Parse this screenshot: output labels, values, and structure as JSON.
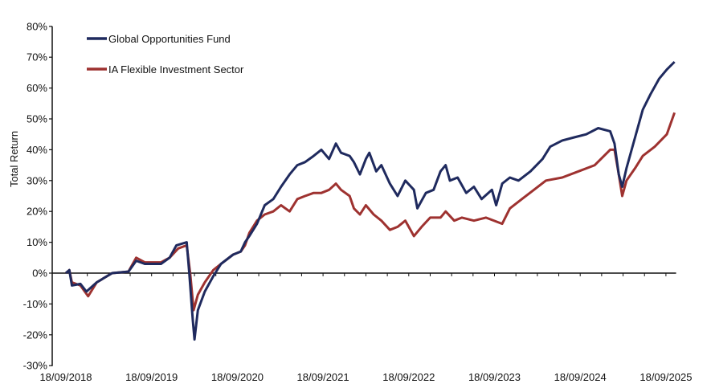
{
  "chart_data": {
    "type": "line",
    "title": "",
    "xlabel": "",
    "ylabel": "Total Return",
    "x_unit": "years since 18/09/2018",
    "xlim": [
      0,
      7.1
    ],
    "ylim": [
      -30,
      80
    ],
    "y_ticks": [
      -30,
      -20,
      -10,
      0,
      10,
      20,
      30,
      40,
      50,
      60,
      70,
      80
    ],
    "y_tick_labels": [
      "-30%",
      "-20%",
      "-10%",
      "0%",
      "10%",
      "20%",
      "30%",
      "40%",
      "50%",
      "60%",
      "70%",
      "80%"
    ],
    "x_ticks": [
      0,
      1,
      2,
      3,
      4,
      5,
      6,
      7
    ],
    "x_tick_labels": [
      "18/09/2018",
      "18/09/2019",
      "18/09/2020",
      "18/09/2021",
      "18/09/2022",
      "18/09/2023",
      "18/09/2024",
      "18/09/2025"
    ],
    "grid": false,
    "legend_position": "top-left",
    "series": [
      {
        "name": "Global Opportunities Fund",
        "color": "#1f2a5e",
        "x": [
          0,
          0.04,
          0.07,
          0.17,
          0.24,
          0.36,
          0.54,
          0.73,
          0.82,
          0.92,
          1.11,
          1.21,
          1.29,
          1.41,
          1.44,
          1.48,
          1.5,
          1.54,
          1.62,
          1.72,
          1.81,
          1.95,
          2.04,
          2.09,
          2.14,
          2.23,
          2.32,
          2.42,
          2.51,
          2.61,
          2.7,
          2.79,
          2.89,
          2.98,
          3.07,
          3.15,
          3.21,
          3.31,
          3.36,
          3.43,
          3.5,
          3.54,
          3.62,
          3.68,
          3.78,
          3.87,
          3.96,
          4.06,
          4.1,
          4.2,
          4.29,
          4.37,
          4.43,
          4.48,
          4.57,
          4.67,
          4.76,
          4.85,
          4.97,
          5.02,
          5.09,
          5.18,
          5.28,
          5.42,
          5.56,
          5.65,
          5.79,
          5.93,
          6.07,
          6.21,
          6.35,
          6.4,
          6.45,
          6.49,
          6.54,
          6.64,
          6.73,
          6.82,
          6.92,
          7.01,
          7.1
        ],
        "values": [
          0,
          1,
          -4,
          -3.5,
          -6,
          -3,
          0,
          0.5,
          4,
          3,
          3,
          5,
          9,
          10,
          0,
          -15,
          -21.5,
          -12,
          -6,
          -1,
          3,
          6,
          7,
          10,
          12,
          16,
          22,
          24,
          28,
          32,
          35,
          36,
          38,
          40,
          37,
          42,
          39,
          38,
          36,
          32,
          37,
          39,
          33,
          35,
          29,
          25,
          30,
          27,
          21,
          26,
          27,
          33,
          35,
          30,
          31,
          26,
          28,
          24,
          27,
          22,
          29,
          31,
          30,
          33,
          37,
          41,
          43,
          44,
          45,
          47,
          46,
          42,
          32,
          28,
          34,
          44,
          53,
          58,
          63,
          66,
          68.5
        ]
      },
      {
        "name": "IA Flexible Investment Sector",
        "color": "#9e3230",
        "x": [
          0,
          0.04,
          0.07,
          0.17,
          0.26,
          0.36,
          0.54,
          0.73,
          0.82,
          0.92,
          1.11,
          1.21,
          1.31,
          1.41,
          1.45,
          1.49,
          1.54,
          1.62,
          1.72,
          1.81,
          1.95,
          2.04,
          2.09,
          2.14,
          2.23,
          2.32,
          2.42,
          2.51,
          2.61,
          2.7,
          2.79,
          2.89,
          2.98,
          3.07,
          3.15,
          3.21,
          3.31,
          3.36,
          3.43,
          3.5,
          3.59,
          3.68,
          3.78,
          3.87,
          3.96,
          4.06,
          4.15,
          4.25,
          4.37,
          4.43,
          4.53,
          4.62,
          4.76,
          4.9,
          5.09,
          5.18,
          5.32,
          5.46,
          5.6,
          5.79,
          5.98,
          6.17,
          6.35,
          6.4,
          6.45,
          6.49,
          6.54,
          6.64,
          6.73,
          6.87,
          7.01,
          7.1
        ],
        "values": [
          0,
          1,
          -3,
          -4,
          -7.5,
          -3,
          0,
          0.5,
          5,
          3.5,
          3.5,
          5,
          8,
          9,
          0,
          -12,
          -7,
          -3,
          1,
          3,
          6,
          7,
          9,
          13,
          17,
          19,
          20,
          22,
          20,
          24,
          25,
          26,
          26,
          27,
          29,
          27,
          25,
          21,
          19,
          22,
          19,
          17,
          14,
          15,
          17,
          12,
          15,
          18,
          18,
          20,
          17,
          18,
          17,
          18,
          16,
          21,
          24,
          27,
          30,
          31,
          33,
          35,
          40,
          40,
          32,
          25,
          30,
          34,
          38,
          41,
          45,
          52
        ]
      }
    ]
  }
}
